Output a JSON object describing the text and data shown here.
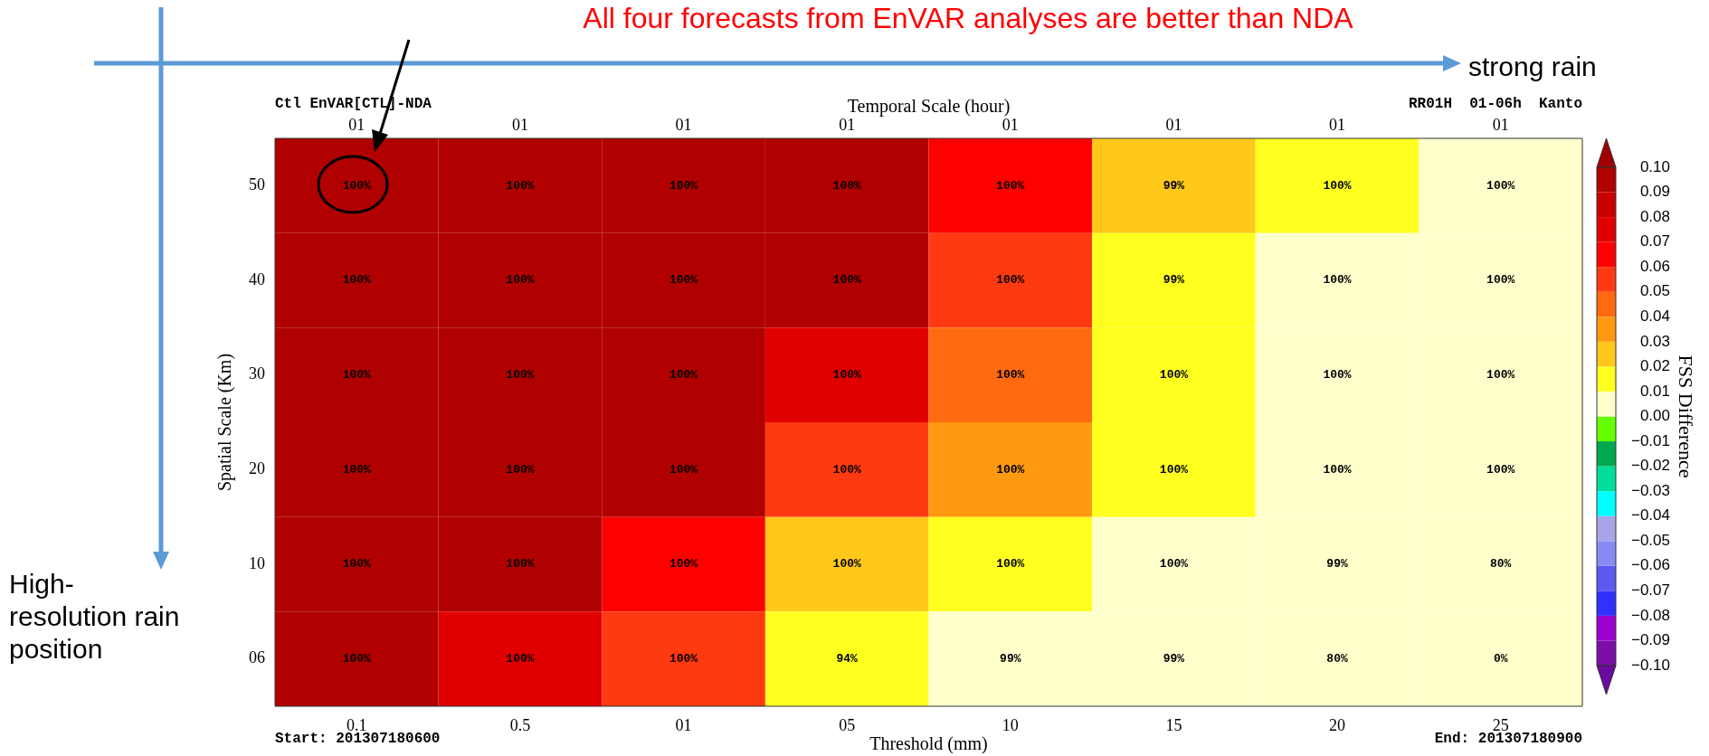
{
  "chart_data": {
    "type": "heatmap",
    "title": "All four forecasts from EnVAR analyses are better than NDA",
    "xlabel": "Threshold (mm)",
    "ylabel": "Spatial Scale (Km)",
    "x2label": "Temporal Scale (hour)",
    "clabel": "FSS Difference",
    "categories": [
      "0.1",
      "0.5",
      "01",
      "05",
      "10",
      "15",
      "20",
      "25"
    ],
    "y_categories": [
      "50",
      "40",
      "30",
      "20",
      "10",
      "06"
    ],
    "cells": [
      [
        0.095,
        0.095,
        0.095,
        0.095,
        0.065,
        0.025,
        0.015,
        0.005
      ],
      [
        0.095,
        0.095,
        0.095,
        0.095,
        0.055,
        0.015,
        0.005,
        0.005
      ],
      [
        0.095,
        0.095,
        0.095,
        0.075,
        0.045,
        0.015,
        0.005,
        0.005
      ],
      [
        0.095,
        0.095,
        0.095,
        0.055,
        0.035,
        0.015,
        0.005,
        0.005
      ],
      [
        0.095,
        0.095,
        0.065,
        0.025,
        0.015,
        0.005,
        0.005,
        0.005
      ],
      [
        0.095,
        0.075,
        0.055,
        0.015,
        0.005,
        0.005,
        0.005,
        0.005
      ]
    ],
    "clim": [
      -0.1,
      0.1
    ],
    "cticks": [
      {
        "value": -0.1,
        "label": "−0.10"
      },
      {
        "value": -0.09,
        "label": "−0.09"
      },
      {
        "value": -0.08,
        "label": "−0.08"
      },
      {
        "value": -0.07,
        "label": "−0.07"
      },
      {
        "value": -0.06,
        "label": "−0.06"
      },
      {
        "value": -0.05,
        "label": "−0.05"
      },
      {
        "value": -0.04,
        "label": "−0.04"
      },
      {
        "value": -0.03,
        "label": "−0.03"
      },
      {
        "value": -0.02,
        "label": "−0.02"
      },
      {
        "value": -0.01,
        "label": "−0.01"
      },
      {
        "value": 0,
        "label": "0.00"
      },
      {
        "value": 0.01,
        "label": "0.01"
      },
      {
        "value": 0.02,
        "label": "0.02"
      },
      {
        "value": 0.03,
        "label": "0.03"
      },
      {
        "value": 0.04,
        "label": "0.04"
      },
      {
        "value": 0.05,
        "label": "0.05"
      },
      {
        "value": 0.06,
        "label": "0.06"
      },
      {
        "value": 0.07,
        "label": "0.07"
      },
      {
        "value": 0.08,
        "label": "0.08"
      },
      {
        "value": 0.09,
        "label": "0.09"
      },
      {
        "value": 0.1,
        "label": "0.10"
      }
    ],
    "colors": [
      "#6a0aa0",
      "#7a10a8",
      "#9a00d0",
      "#3030ff",
      "#5a5af0",
      "#8a8af5",
      "#a6a6e6",
      "#00ffff",
      "#00dc9a",
      "#00a850",
      "#66ff00",
      "#ffffcc",
      "#ffff20",
      "#ffc81a",
      "#ff9a10",
      "#ff6a10",
      "#ff3a10",
      "#ff0000",
      "#e00000",
      "#c80000",
      "#b00000",
      "#a00000"
    ],
    "annotations": [
      "strong rain",
      "High-resolution rain position",
      "Ctl EnVAR[CTL]-NDA",
      "RR01H  01-06h  Kanto",
      "Start: 201307180600",
      "End: 201307180900",
      "01",
      "01",
      "01",
      "01",
      "01",
      "01",
      "01",
      "01",
      "100%",
      "100%",
      "100%",
      "100%",
      "100%",
      "99%",
      "100%",
      "100%",
      "100%",
      "100%",
      "100%",
      "100%",
      "100%",
      "99%",
      "100%",
      "100%",
      "100%",
      "100%",
      "100%",
      "100%",
      "100%",
      "100%",
      "100%",
      "100%",
      "100%",
      "100%",
      "100%",
      "100%",
      "100%",
      "100%",
      "100%",
      "100%",
      "100%",
      "100%",
      "100%",
      "100%",
      "100%",
      "100%",
      "99%",
      "80%",
      "100%",
      "100%",
      "100%",
      "94%",
      "99%",
      "99%",
      "80%",
      "0%"
    ]
  }
}
